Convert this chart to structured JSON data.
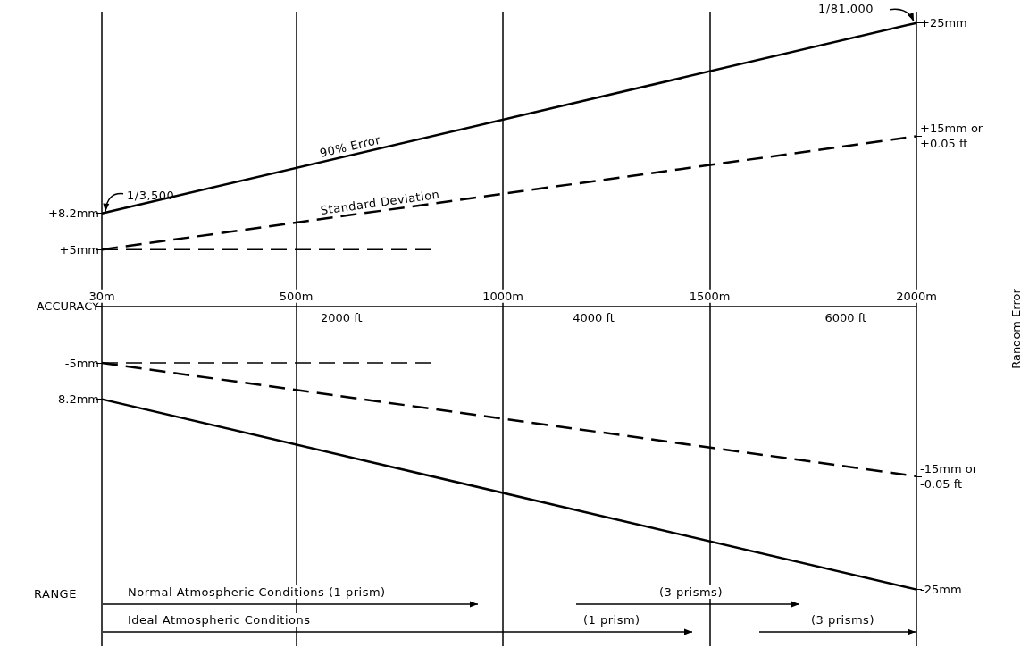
{
  "chart_data": {
    "type": "line",
    "xlim": [
      30,
      2000
    ],
    "xticks": [
      {
        "value": 30,
        "label": "30m"
      },
      {
        "value": 500,
        "label": "500m"
      },
      {
        "value": 1000,
        "label": "1000m"
      },
      {
        "value": 1500,
        "label": "1500m"
      },
      {
        "value": 2000,
        "label": "2000m"
      }
    ],
    "x2lim": [
      98.4,
      6561.7
    ],
    "x2ticks": [
      {
        "value": 2000,
        "label": "2000 ft"
      },
      {
        "value": 4000,
        "label": "4000 ft"
      },
      {
        "value": 6000,
        "label": "6000 ft"
      }
    ],
    "ylim": [
      -30,
      26
    ],
    "yticks": [
      {
        "value": 8.2,
        "label": "+8.2mm"
      },
      {
        "value": 5,
        "label": "+5mm"
      },
      {
        "value": 0,
        "label": "ACCURACY"
      },
      {
        "value": -5,
        "label": "-5mm"
      },
      {
        "value": -8.2,
        "label": "-8.2mm"
      }
    ],
    "y2lim": [
      -30,
      26
    ],
    "y2ticks": [
      {
        "value": 25,
        "label": "+25mm"
      },
      {
        "value": 15,
        "label": "+15mm or\n+0.05 ft"
      },
      {
        "value": -15,
        "label": "-15mm or\n-0.05 ft"
      },
      {
        "value": -25,
        "label": "-25mm"
      }
    ],
    "y2label": "Random Error",
    "grid": "x",
    "legend": false,
    "marker": "none",
    "series": [
      {
        "name": "90% Error",
        "color": "#000000",
        "x": [
          30,
          2000
        ],
        "values": [
          8.2,
          25
        ],
        "line_style": "solid"
      },
      {
        "color": "#000000",
        "x": [
          30,
          2000
        ],
        "values": [
          -8.2,
          -25
        ],
        "line_style": "solid"
      },
      {
        "name": "Standard Deviation",
        "color": "#000000",
        "x": [
          30,
          2000
        ],
        "values": [
          5,
          15
        ],
        "line_style": "dashed"
      },
      {
        "color": "#000000",
        "x": [
          30,
          2000
        ],
        "values": [
          -5,
          -15
        ],
        "line_style": "dashed"
      },
      {
        "color": "#000000",
        "x": [
          30,
          830
        ],
        "values": [
          5,
          5
        ],
        "line_style": "dashed"
      },
      {
        "color": "#000000",
        "x": [
          30,
          830
        ],
        "values": [
          -5,
          -5
        ],
        "line_style": "dashed"
      }
    ],
    "annotations": [
      "1/3,500",
      "1/81,000",
      "RANGE",
      "Normal Atmospheric Conditions (1 prism)",
      "(3 prisms)",
      "Ideal Atmospheric Conditions",
      "(1 prism)",
      "(3 prisms)"
    ]
  }
}
